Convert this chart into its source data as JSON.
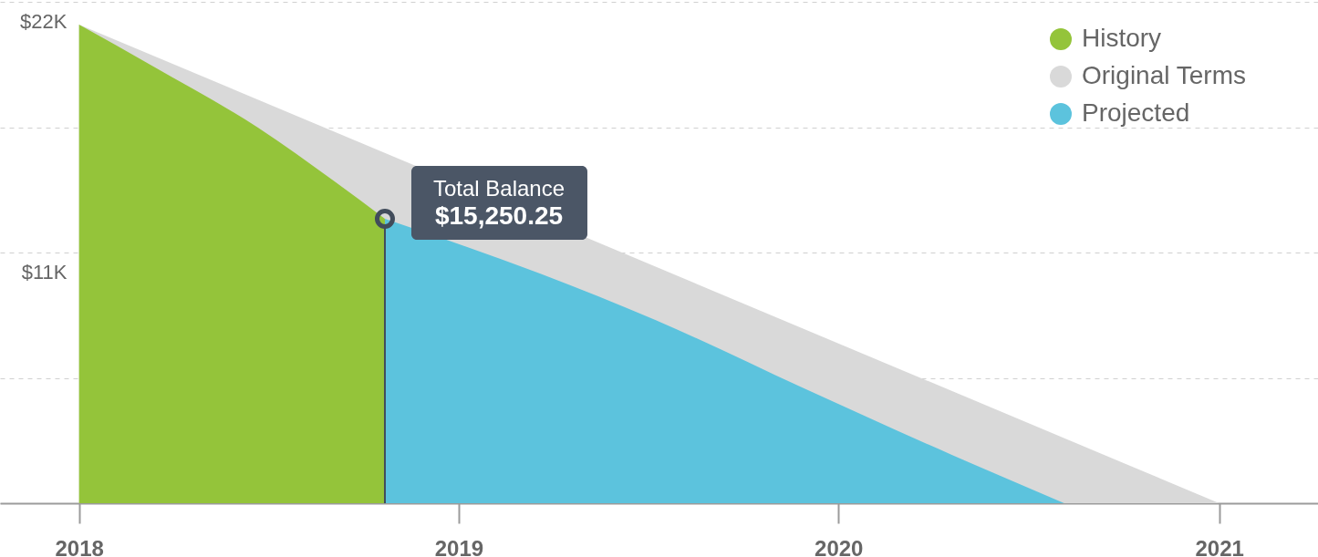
{
  "chart_data": {
    "type": "area",
    "annotations": [
      "Total Balance",
      "$15,250.25"
    ],
    "xlim": [
      "2017-10-17",
      "2021-04-06"
    ],
    "xticks": [
      "2018",
      "2019",
      "2020",
      "2021"
    ],
    "ylim": [
      0,
      22000
    ],
    "yticks": [
      {
        "value": 0,
        "label": null
      },
      {
        "value": 5500,
        "label": null
      },
      {
        "value": 11000,
        "label": "$11K"
      },
      {
        "value": 16500,
        "label": null
      },
      {
        "value": 22000,
        "label": "$22K"
      }
    ],
    "grid": "y",
    "legend": "top right",
    "series": [
      {
        "name": "History",
        "color": "#94c43a",
        "x": [
          "2018-01-01",
          "2018-03-12",
          "2018-06-22",
          "2018-09-03",
          "2018-10-22"
        ],
        "values": [
          21000,
          19200,
          16480,
          14140,
          12480
        ]
      },
      {
        "name": "Original Terms",
        "color": "#d9d9d9",
        "x": [
          "2018-01-01",
          "2021-01-01"
        ],
        "values": [
          21000,
          0
        ]
      },
      {
        "name": "Projected",
        "color": "#5cc3dd",
        "x": [
          "2018-10-22",
          "2019-03-20",
          "2019-07-09",
          "2019-11-27",
          "2020-04-19",
          "2020-06-19",
          "2020-08-05"
        ],
        "values": [
          12480,
          10080,
          8040,
          5080,
          2120,
          920,
          0
        ]
      },
      {
        "type": "lollipop",
        "color": "#414c5b",
        "x": [
          "2018-10-22"
        ],
        "values": [
          12480
        ]
      }
    ]
  }
}
